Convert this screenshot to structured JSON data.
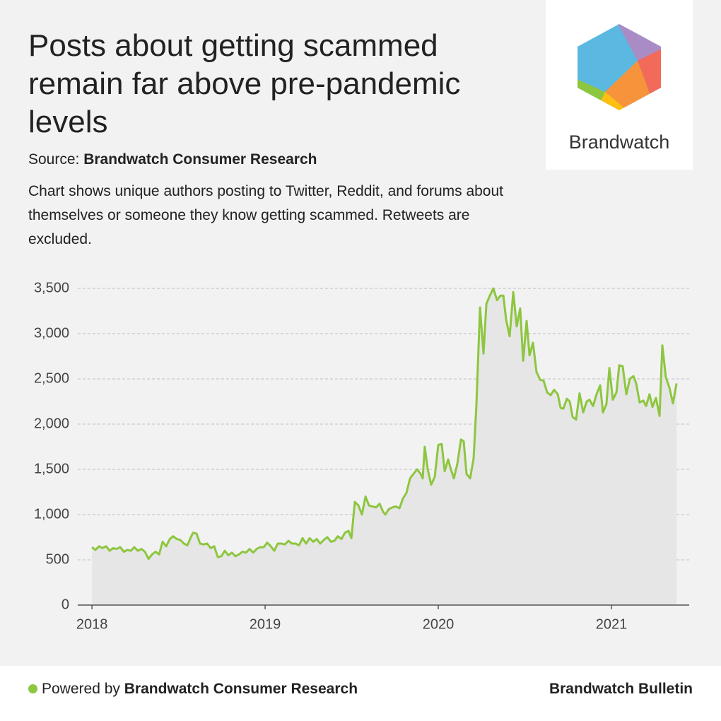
{
  "header": {
    "title": "Posts about getting scammed remain far above pre-pandemic levels",
    "source_label": "Source:",
    "source": "Brandwatch Consumer Research",
    "description": "Chart shows unique authors posting to Twitter, Reddit, and forums about themselves or someone they know getting scammed. Retweets are excluded."
  },
  "logo": {
    "text": "Brandwatch"
  },
  "footer": {
    "powered_label": "Powered by",
    "powered": "Brandwatch Consumer Research",
    "brand": "Brandwatch Bulletin"
  },
  "chart_data": {
    "type": "area",
    "color": "#8dc63f",
    "fill": "#e6e6e6",
    "grid": true,
    "xlim": [
      2017.918,
      2021.449
    ],
    "xticks": [
      2018,
      2019,
      2020,
      2021
    ],
    "ylim": [
      0,
      3500
    ],
    "yticks": [
      0,
      500,
      {
        "value": 1000,
        "label": "1,000"
      },
      {
        "value": 1500,
        "label": "1,500"
      },
      {
        "value": 2000,
        "label": "2,000"
      },
      {
        "value": 2500,
        "label": "2,500"
      },
      {
        "value": 3000,
        "label": "3,000"
      },
      {
        "value": 3500,
        "label": "3,500"
      }
    ],
    "x": [
      2018,
      2018.02,
      2018.041,
      2018.061,
      2018.082,
      2018.102,
      2018.122,
      2018.143,
      2018.163,
      2018.184,
      2018.204,
      2018.224,
      2018.245,
      2018.265,
      2018.286,
      2018.306,
      2018.327,
      2018.347,
      2018.367,
      2018.388,
      2018.408,
      2018.429,
      2018.449,
      2018.469,
      2018.49,
      2018.51,
      2018.531,
      2018.551,
      2018.571,
      2018.584,
      2018.604,
      2018.624,
      2018.645,
      2018.665,
      2018.686,
      2018.706,
      2018.727,
      2018.747,
      2018.767,
      2018.788,
      2018.808,
      2018.829,
      2018.849,
      2018.869,
      2018.89,
      2018.91,
      2018.931,
      2018.951,
      2018.971,
      2018.992,
      2019.012,
      2019.033,
      2019.053,
      2019.073,
      2019.094,
      2019.114,
      2019.135,
      2019.155,
      2019.176,
      2019.196,
      2019.216,
      2019.237,
      2019.257,
      2019.278,
      2019.298,
      2019.318,
      2019.339,
      2019.359,
      2019.38,
      2019.4,
      2019.42,
      2019.441,
      2019.461,
      2019.482,
      2019.498,
      2019.518,
      2019.539,
      2019.559,
      2019.58,
      2019.6,
      2019.62,
      2019.641,
      2019.661,
      2019.682,
      2019.694,
      2019.714,
      2019.735,
      2019.755,
      2019.776,
      2019.796,
      2019.816,
      2019.837,
      2019.857,
      2019.878,
      2019.898,
      2019.91,
      2019.922,
      2019.939,
      2019.959,
      2019.98,
      2020.0,
      2020.02,
      2020.037,
      2020.057,
      2020.073,
      2020.09,
      2020.11,
      2020.131,
      2020.147,
      2020.163,
      2020.184,
      2020.204,
      2020.22,
      2020.241,
      2020.261,
      2020.278,
      2020.298,
      2020.318,
      2020.339,
      2020.359,
      2020.376,
      2020.392,
      2020.412,
      2020.433,
      2020.453,
      2020.473,
      2020.49,
      2020.51,
      2020.527,
      2020.547,
      2020.567,
      2020.588,
      2020.608,
      2020.629,
      2020.649,
      2020.669,
      2020.69,
      2020.706,
      2020.722,
      2020.743,
      2020.759,
      2020.776,
      2020.796,
      2020.816,
      2020.837,
      2020.857,
      2020.873,
      2020.894,
      2020.914,
      2020.935,
      2020.951,
      2020.971,
      2020.988,
      2021.008,
      2021.029,
      2021.045,
      2021.065,
      2021.086,
      2021.106,
      2021.127,
      2021.143,
      2021.163,
      2021.184,
      2021.2,
      2021.22,
      2021.237,
      2021.257,
      2021.278,
      2021.294,
      2021.314,
      2021.335,
      2021.355,
      2021.376
    ],
    "values": [
      640,
      610,
      650,
      630,
      650,
      600,
      630,
      620,
      640,
      590,
      610,
      600,
      640,
      600,
      620,
      590,
      510,
      560,
      590,
      560,
      700,
      650,
      730,
      760,
      730,
      720,
      680,
      660,
      750,
      800,
      790,
      680,
      670,
      680,
      630,
      650,
      530,
      540,
      600,
      550,
      580,
      540,
      560,
      590,
      580,
      620,
      580,
      620,
      640,
      640,
      690,
      650,
      600,
      680,
      680,
      670,
      710,
      680,
      680,
      660,
      740,
      680,
      740,
      700,
      730,
      680,
      720,
      750,
      700,
      710,
      760,
      730,
      800,
      820,
      740,
      1140,
      1100,
      1000,
      1200,
      1100,
      1090,
      1080,
      1120,
      1030,
      1000,
      1060,
      1080,
      1090,
      1070,
      1180,
      1240,
      1400,
      1450,
      1500,
      1450,
      1400,
      1750,
      1500,
      1330,
      1420,
      1770,
      1780,
      1480,
      1610,
      1500,
      1400,
      1560,
      1830,
      1810,
      1450,
      1400,
      1620,
      2200,
      3290,
      2780,
      3330,
      3420,
      3500,
      3370,
      3420,
      3420,
      3150,
      2970,
      3460,
      3080,
      3280,
      2700,
      3140,
      2760,
      2900,
      2580,
      2490,
      2480,
      2350,
      2320,
      2380,
      2330,
      2180,
      2170,
      2280,
      2250,
      2080,
      2050,
      2340,
      2130,
      2250,
      2270,
      2200,
      2330,
      2430,
      2130,
      2220,
      2620,
      2270,
      2350,
      2650,
      2640,
      2330,
      2500,
      2530,
      2450,
      2240,
      2260,
      2200,
      2330,
      2190,
      2290,
      2090,
      2870,
      2520,
      2400,
      2230,
      2450
    ]
  }
}
